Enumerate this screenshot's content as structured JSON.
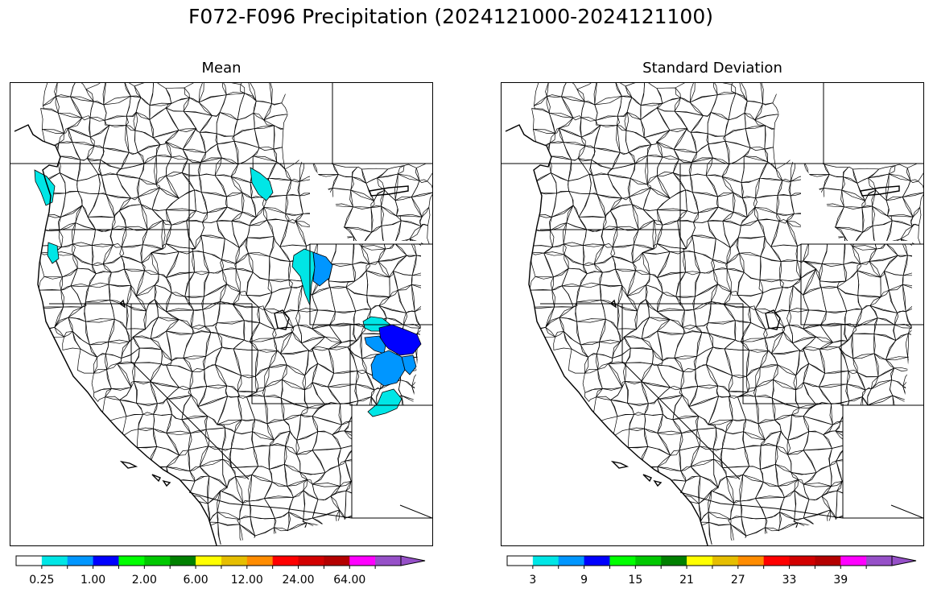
{
  "title": "F072-F096 Precipitation (2024121000-2024121100)",
  "panels": [
    {
      "id": "mean",
      "title": "Mean",
      "colorbar": {
        "colors": [
          "#ffffff",
          "#00e6e6",
          "#0096ff",
          "#0000ff",
          "#00ff00",
          "#00c800",
          "#008000",
          "#ffff00",
          "#e6be00",
          "#ff8c00",
          "#ff0000",
          "#d20000",
          "#b40000",
          "#ff00ff",
          "#9650c8"
        ],
        "tick_labels": [
          "0.25",
          "1.00",
          "2.00",
          "6.00",
          "12.00",
          "24.00",
          "64.00"
        ]
      }
    },
    {
      "id": "std",
      "title": "Standard Deviation",
      "colorbar": {
        "colors": [
          "#ffffff",
          "#00e6e6",
          "#0096ff",
          "#0000ff",
          "#00ff00",
          "#00c800",
          "#008000",
          "#ffff00",
          "#e6be00",
          "#ff8c00",
          "#ff0000",
          "#d20000",
          "#b40000",
          "#ff00ff",
          "#9650c8"
        ],
        "tick_labels": [
          "3",
          "9",
          "15",
          "21",
          "27",
          "33",
          "39"
        ]
      }
    }
  ]
}
